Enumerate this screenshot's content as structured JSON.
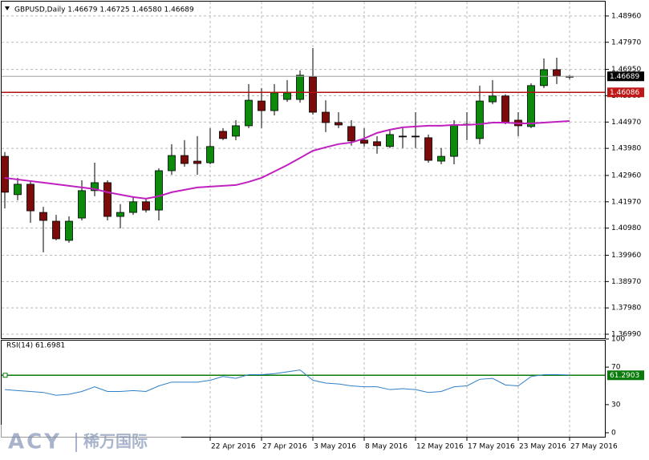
{
  "chart_data": [
    {
      "type": "candlestick",
      "title": "GBPUSD,Daily  1.46679 1.46725 1.46580 1.46689",
      "categories": [
        null,
        null,
        null,
        null,
        null,
        null,
        null,
        null,
        null,
        null,
        null,
        null,
        null,
        null,
        null,
        null,
        "22 Apr 2016",
        null,
        null,
        null,
        "27 Apr 2016",
        null,
        null,
        null,
        "3 May 2016",
        null,
        null,
        null,
        "8 May 2016",
        null,
        null,
        null,
        "12 May 2016",
        null,
        null,
        null,
        "17 May 2016",
        null,
        null,
        null,
        "23 May 2016",
        null,
        null,
        null,
        "27 May 2016"
      ],
      "open": [
        1.4368,
        1.4224,
        1.4263,
        1.4157,
        1.4124,
        1.4052,
        1.4136,
        1.4239,
        1.4269,
        1.4142,
        1.4157,
        1.4197,
        1.4166,
        1.4314,
        1.4371,
        1.435,
        1.4344,
        1.4462,
        1.4444,
        1.4483,
        1.4576,
        1.454,
        1.4582,
        1.4582,
        1.4667,
        1.4534,
        1.4495,
        1.448,
        1.4429,
        1.4423,
        1.4405,
        1.4444,
        1.4444,
        1.4438,
        1.435,
        1.4368,
        1.4486,
        1.4435,
        1.4573,
        1.4595,
        1.4504,
        1.448,
        1.4634,
        1.4694,
        1.46679
      ],
      "high": [
        1.4384,
        1.4287,
        1.4278,
        1.4178,
        1.4148,
        1.4142,
        1.4278,
        1.4344,
        1.4278,
        1.4188,
        1.4218,
        1.4209,
        1.4323,
        1.4414,
        1.4429,
        1.4444,
        1.4474,
        1.4474,
        1.4504,
        1.464,
        1.4625,
        1.464,
        1.4655,
        1.4691,
        1.4775,
        1.4579,
        1.4534,
        1.4504,
        1.4474,
        1.4444,
        1.4468,
        1.4474,
        1.4534,
        1.445,
        1.4399,
        1.4504,
        1.4534,
        1.4634,
        1.4655,
        1.4601,
        1.4534,
        1.4643,
        1.4736,
        1.4739,
        1.46725
      ],
      "low": [
        1.4172,
        1.4203,
        1.4118,
        1.4007,
        1.4052,
        1.4043,
        1.4127,
        1.4218,
        1.4127,
        1.4097,
        1.4148,
        1.4157,
        1.4127,
        1.4299,
        1.4329,
        1.4299,
        1.4338,
        1.4429,
        1.4429,
        1.4474,
        1.4474,
        1.4522,
        1.4573,
        1.457,
        1.4525,
        1.4459,
        1.4474,
        1.4408,
        1.4405,
        1.4378,
        1.4399,
        1.4399,
        1.4399,
        1.4344,
        1.4338,
        1.4338,
        1.4429,
        1.4414,
        1.4564,
        1.4489,
        1.4444,
        1.4474,
        1.4625,
        1.464,
        1.4658
      ],
      "close": [
        1.4233,
        1.4263,
        1.4163,
        1.4127,
        1.4058,
        1.4124,
        1.4239,
        1.4269,
        1.4142,
        1.4157,
        1.4197,
        1.4166,
        1.4314,
        1.4371,
        1.4341,
        1.4341,
        1.4405,
        1.4435,
        1.4483,
        1.4579,
        1.454,
        1.4607,
        1.4607,
        1.4673,
        1.4534,
        1.4495,
        1.4486,
        1.4426,
        1.4417,
        1.4408,
        1.445,
        1.4441,
        1.4441,
        1.4353,
        1.4368,
        1.4486,
        1.4489,
        1.4576,
        1.4595,
        1.4495,
        1.4483,
        1.4634,
        1.4694,
        1.467,
        1.46689
      ],
      "up_color": "#0b8a0b",
      "down_color": "#7a0c0c",
      "moving_average": {
        "color": "#c020c0",
        "values": [
          1.4287,
          1.4281,
          1.4275,
          1.4269,
          1.4263,
          1.4257,
          1.4251,
          1.4245,
          1.4233,
          1.4224,
          1.4215,
          1.4209,
          1.4218,
          1.4233,
          1.4242,
          1.4251,
          1.4254,
          1.4257,
          1.426,
          1.4272,
          1.4287,
          1.4311,
          1.4335,
          1.4362,
          1.4389,
          1.4402,
          1.4414,
          1.442,
          1.4435,
          1.4456,
          1.4468,
          1.4477,
          1.448,
          1.4483,
          1.4483,
          1.4486,
          1.4486,
          1.4489,
          1.4495,
          1.4495,
          1.4492,
          1.4492,
          1.4495,
          1.4498,
          1.4501
        ]
      },
      "hlines": [
        {
          "value": 1.46689,
          "color": "#a0a0a0",
          "box": "#000000"
        },
        {
          "value": 1.46086,
          "color": "#b01010",
          "box": "#c01818"
        }
      ],
      "ylim": [
        1.3684,
        1.495
      ],
      "yticks": [
        {
          "value": 1.4896,
          "label": "1.48960"
        },
        {
          "value": 1.4797,
          "label": "1.47970"
        },
        {
          "value": 1.4695,
          "label": "1.46950"
        },
        {
          "value": 1.4596,
          "label": "1.45960"
        },
        {
          "value": 1.4497,
          "label": "1.44970"
        },
        {
          "value": 1.4398,
          "label": "1.43980"
        },
        {
          "value": 1.4296,
          "label": "1.42960"
        },
        {
          "value": 1.4197,
          "label": "1.41970"
        },
        {
          "value": 1.4098,
          "label": "1.40980"
        },
        {
          "value": 1.3996,
          "label": "1.39960"
        },
        {
          "value": 1.3897,
          "label": "1.38970"
        },
        {
          "value": 1.3798,
          "label": "1.37980"
        },
        {
          "value": 1.3699,
          "label": "1.36990"
        }
      ],
      "grid": true
    },
    {
      "type": "line",
      "title": "RSI(14) 61.6981",
      "values": [
        46,
        45,
        44,
        43,
        40,
        41,
        44,
        49,
        44,
        44,
        45,
        44,
        50,
        54,
        54,
        54,
        56,
        60,
        58,
        62,
        62,
        63,
        65,
        67,
        56,
        53,
        52,
        50,
        49,
        49,
        46,
        47,
        46,
        43,
        44,
        49,
        50,
        57,
        58,
        51,
        50,
        60,
        62,
        62,
        61.6981
      ],
      "color": "#2f7fc8",
      "level": {
        "value": 61.2903,
        "color": "#0a7a0a"
      },
      "ylim": [
        0,
        100
      ],
      "yticks": [
        100,
        70,
        30,
        0
      ]
    }
  ],
  "watermark": {
    "brand": "ACY",
    "name": "稀万国际"
  }
}
